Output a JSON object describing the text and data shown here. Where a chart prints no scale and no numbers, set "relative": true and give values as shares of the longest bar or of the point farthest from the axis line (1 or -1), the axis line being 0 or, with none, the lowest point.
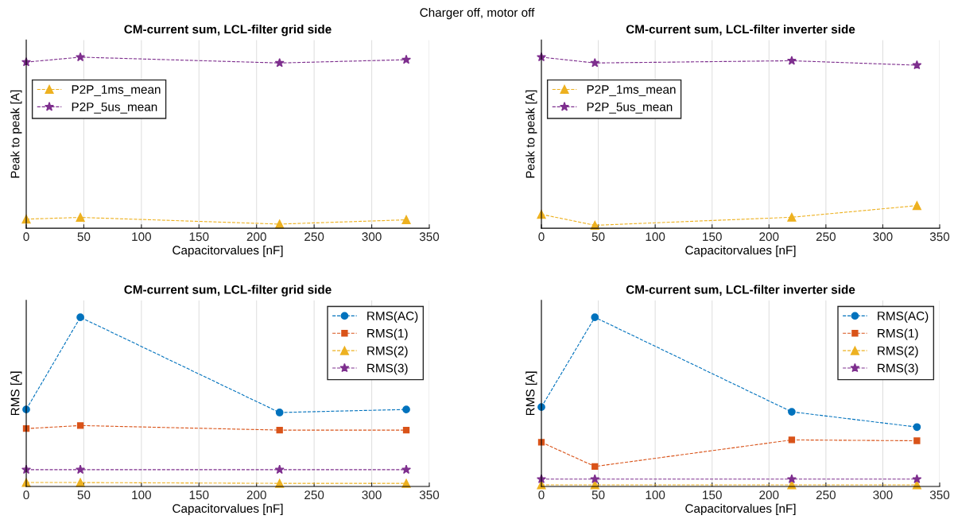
{
  "chart_data": [
    {
      "type": "line",
      "annotations": [
        "Charger off, motor off"
      ],
      "title": "CM-current sum, LCL-filter grid side",
      "xlabel": "Capacitorvalues [nF]",
      "ylabel": "Peak to peak [A]",
      "relative": true,
      "x": [
        0,
        47,
        220,
        330
      ],
      "xlim": [
        0,
        350
      ],
      "xticks": [
        0,
        50,
        100,
        150,
        200,
        250,
        300,
        350
      ],
      "grid": "x",
      "legend": "top left",
      "line_style": "dashed",
      "series": [
        {
          "name": "P2P_1ms_mean",
          "color": "#edb120",
          "marker": "triangle",
          "values": [
            0.053,
            0.063,
            0.024,
            0.049
          ]
        },
        {
          "name": "P2P_5us_mean",
          "color": "#7e2f8e",
          "marker": "star",
          "values": [
            0.971,
            1,
            0.966,
            0.985
          ]
        }
      ]
    },
    {
      "type": "line",
      "title": "CM-current sum, LCL-filter inverter side",
      "xlabel": "Capacitorvalues [nF]",
      "ylabel": "Peak to peak [A]",
      "relative": true,
      "x": [
        0,
        47,
        220,
        330
      ],
      "xlim": [
        0,
        350
      ],
      "xticks": [
        0,
        50,
        100,
        150,
        200,
        250,
        300,
        350
      ],
      "grid": "x",
      "legend": "top left",
      "line_style": "dashed",
      "series": [
        {
          "name": "P2P_1ms_mean",
          "color": "#edb120",
          "marker": "triangle",
          "values": [
            0.081,
            0.017,
            0.064,
            0.132
          ]
        },
        {
          "name": "P2P_5us_mean",
          "color": "#7e2f8e",
          "marker": "star",
          "values": [
            1,
            0.966,
            0.979,
            0.953
          ]
        }
      ]
    },
    {
      "type": "line",
      "title": "CM-current sum, LCL-filter grid side",
      "xlabel": "Capacitorvalues [nF]",
      "ylabel": "RMS [A]",
      "relative": true,
      "x": [
        0,
        47,
        220,
        330
      ],
      "xlim": [
        0,
        350
      ],
      "xticks": [
        0,
        50,
        100,
        150,
        200,
        250,
        300,
        350
      ],
      "grid": "x",
      "legend": "top right",
      "line_style": "dashed",
      "series": [
        {
          "name": "RMS(AC)",
          "color": "#0072bd",
          "marker": "circle",
          "values": [
            0.455,
            1,
            0.437,
            0.455
          ]
        },
        {
          "name": "RMS(1)",
          "color": "#d95319",
          "marker": "square",
          "values": [
            0.342,
            0.36,
            0.333,
            0.333
          ]
        },
        {
          "name": "RMS(2)",
          "color": "#edb120",
          "marker": "triangle",
          "values": [
            0.023,
            0.023,
            0.018,
            0.018
          ]
        },
        {
          "name": "RMS(3)",
          "color": "#7e2f8e",
          "marker": "star",
          "values": [
            0.099,
            0.099,
            0.099,
            0.099
          ]
        }
      ]
    },
    {
      "type": "line",
      "title": "CM-current sum, LCL-filter inverter side",
      "xlabel": "Capacitorvalues [nF]",
      "ylabel": "RMS [A]",
      "relative": true,
      "x": [
        0,
        47,
        220,
        330
      ],
      "xlim": [
        0,
        350
      ],
      "xticks": [
        0,
        50,
        100,
        150,
        200,
        250,
        300,
        350
      ],
      "grid": "x",
      "legend": "top right",
      "line_style": "dashed",
      "series": [
        {
          "name": "RMS(AC)",
          "color": "#0072bd",
          "marker": "circle",
          "values": [
            0.469,
            1,
            0.441,
            0.351
          ]
        },
        {
          "name": "RMS(1)",
          "color": "#d95319",
          "marker": "square",
          "values": [
            0.261,
            0.118,
            0.275,
            0.27
          ]
        },
        {
          "name": "RMS(2)",
          "color": "#edb120",
          "marker": "triangle",
          "values": [
            0.009,
            0.009,
            0.009,
            0.009
          ]
        },
        {
          "name": "RMS(3)",
          "color": "#7e2f8e",
          "marker": "star",
          "values": [
            0.043,
            0.043,
            0.043,
            0.043
          ]
        }
      ]
    }
  ]
}
